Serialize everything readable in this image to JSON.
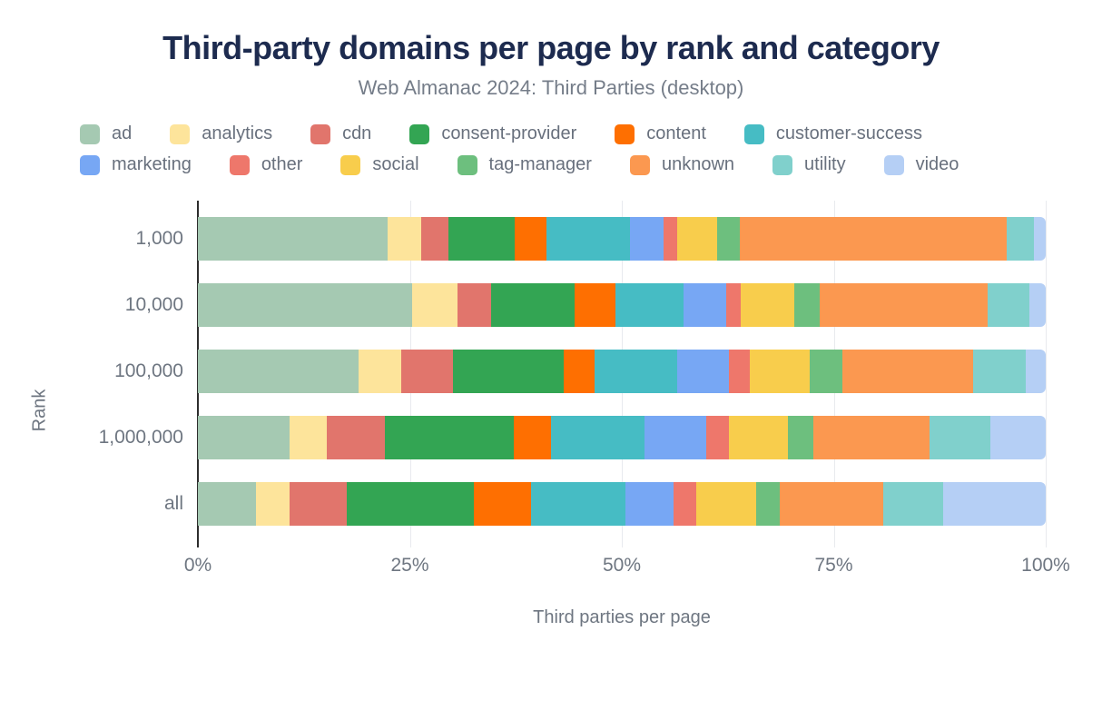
{
  "title": "Third-party domains per page by rank and category",
  "subtitle": "Web Almanac 2024: Third Parties (desktop)",
  "chart_data": {
    "type": "bar",
    "orientation": "horizontal",
    "stacked": true,
    "title": "Third-party domains per page by rank and category",
    "subtitle": "Web Almanac 2024: Third Parties (desktop)",
    "xlabel": "Third parties per page",
    "ylabel": "Rank",
    "categories": [
      "1,000",
      "10,000",
      "100,000",
      "1,000,000",
      "all"
    ],
    "x_ticks": [
      "0%",
      "25%",
      "50%",
      "75%",
      "100%"
    ],
    "x_tick_positions": [
      0,
      25,
      50,
      75,
      100
    ],
    "xlim": [
      0,
      100
    ],
    "grid": true,
    "legend_position": "top",
    "legend_rows": [
      6,
      7
    ],
    "series": [
      {
        "name": "ad",
        "color": "#a5c9b2",
        "values": [
          22.4,
          25.3,
          19.0,
          10.8,
          6.8
        ]
      },
      {
        "name": "analytics",
        "color": "#fde49b",
        "values": [
          3.9,
          5.3,
          5.0,
          4.4,
          4.0
        ]
      },
      {
        "name": "cdn",
        "color": "#e1756c",
        "values": [
          3.3,
          4.0,
          6.1,
          6.9,
          6.8
        ]
      },
      {
        "name": "consent-provider",
        "color": "#33a553",
        "values": [
          7.8,
          9.8,
          13.1,
          15.2,
          15.0
        ]
      },
      {
        "name": "content",
        "color": "#fe6f01",
        "values": [
          3.7,
          4.9,
          3.6,
          4.3,
          6.7
        ]
      },
      {
        "name": "customer-success",
        "color": "#46bcc4",
        "values": [
          9.9,
          8.0,
          9.7,
          11.1,
          11.1
        ]
      },
      {
        "name": "marketing",
        "color": "#77a7f4",
        "values": [
          3.9,
          5.0,
          6.1,
          7.3,
          5.7
        ]
      },
      {
        "name": "other",
        "color": "#ee776b",
        "values": [
          1.6,
          1.7,
          2.5,
          2.6,
          2.7
        ]
      },
      {
        "name": "social",
        "color": "#f8cd4c",
        "values": [
          4.8,
          6.3,
          7.1,
          7.0,
          7.1
        ]
      },
      {
        "name": "tag-manager",
        "color": "#6dbf7e",
        "values": [
          2.6,
          3.0,
          3.8,
          3.0,
          2.7
        ]
      },
      {
        "name": "unknown",
        "color": "#fb9850",
        "values": [
          31.5,
          19.8,
          15.4,
          13.7,
          12.2
        ]
      },
      {
        "name": "utility",
        "color": "#80d0cc",
        "values": [
          3.2,
          5.0,
          6.2,
          7.2,
          7.1
        ]
      },
      {
        "name": "video",
        "color": "#b5cff5",
        "values": [
          1.4,
          1.9,
          2.4,
          6.5,
          12.1
        ]
      }
    ],
    "colors": {
      "title": "#1d2b4f",
      "subtitle": "#757d89",
      "axis_text": "#6e7681",
      "legend_text": "#68707d",
      "axis_line": "#2d2d2d",
      "gridline": "#e8eaee",
      "background": "#ffffff"
    }
  }
}
